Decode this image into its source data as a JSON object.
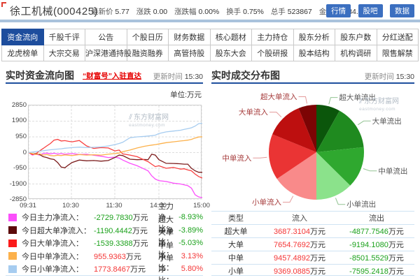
{
  "header": {
    "title": "徐工机械(000425)",
    "stats": [
      {
        "label": "最新价",
        "value": "5.77"
      },
      {
        "label": "涨跌",
        "value": "0.00"
      },
      {
        "label": "涨跌幅",
        "value": "0.00%"
      },
      {
        "label": "换手",
        "value": "0.75%"
      },
      {
        "label": "总手",
        "value": "523867"
      },
      {
        "label": "金额",
        "value": "30584.00万"
      }
    ],
    "buttons": [
      "行情",
      "股吧",
      "数据"
    ]
  },
  "nav": {
    "active": "资金流向",
    "row1": [
      "资金流向",
      "千股千评",
      "公告",
      "个股日历",
      "财务数据",
      "核心题材",
      "主力持仓",
      "股东分析",
      "股东户数",
      "分红送配"
    ],
    "row2": [
      "龙虎榜单",
      "大宗交易",
      "沪深港通持股",
      "融资融券",
      "高管持股",
      "股东大会",
      "个股研报",
      "股本结构",
      "机构调研",
      "限售解禁"
    ]
  },
  "left_panel": {
    "title": "实时资金流向图",
    "promo_link": "“财富号”入驻直达",
    "update_label": "更新时间",
    "update_time": "15:30",
    "unit_label": "单位:万元",
    "unit_suffix": "万元",
    "watermark": {
      "line1": "东方财富网",
      "line2": "eastmoney.com",
      "glyph": "⫽"
    },
    "legend_rows": [
      {
        "swatch": "#fb4ffb",
        "label": "今日主力净流入：",
        "value": "-2729.7830",
        "ratio_label": "主力净比：",
        "ratio": "-8.93%"
      },
      {
        "swatch": "#5c0a0a",
        "label": "今日超大单净流入：",
        "value": "-1190.4442",
        "ratio_label": "超大单净比：",
        "ratio": "-3.89%"
      },
      {
        "swatch": "#fb1b1b",
        "label": "今日大单净流入：",
        "value": "-1539.3388",
        "ratio_label": "大单净比：",
        "ratio": "-5.03%"
      },
      {
        "swatch": "#fcb14b",
        "label": "今日中单净流入：",
        "value": "955.9363",
        "ratio_label": "中单净比：",
        "ratio": "3.13%"
      },
      {
        "swatch": "#a6ccf0",
        "label": "今日小单净流入：",
        "value": "1773.8467",
        "ratio_label": "小单净比：",
        "ratio": "5.80%"
      }
    ]
  },
  "right_panel": {
    "title": "实时成交分布图",
    "update_label": "更新时间",
    "update_time": "15:30",
    "watermark": {
      "line1": "东方财富网",
      "line2": "eastmoney.com",
      "glyph": "⫽"
    },
    "table": {
      "headers": [
        "类型",
        "流入",
        "流出"
      ],
      "unit_suffix": "万元",
      "rows": [
        {
          "type": "超大单",
          "inflow": "3687.3104",
          "outflow": "-4877.7546"
        },
        {
          "type": "大单",
          "inflow": "7654.7692",
          "outflow": "-9194.1080"
        },
        {
          "type": "中单",
          "inflow": "9457.4892",
          "outflow": "-8501.5529"
        },
        {
          "type": "小单",
          "inflow": "9369.0885",
          "outflow": "-7595.2418"
        }
      ]
    }
  },
  "chart_data": [
    {
      "type": "line",
      "title": "实时资金流向图",
      "ylabel": "万元",
      "ylim": [
        -2850,
        2850
      ],
      "y_ticks": [
        2850,
        1900,
        950,
        0,
        -950,
        -1900,
        -2850
      ],
      "x_ticks": [
        "09:31",
        "10:30",
        "11:30",
        "14:00",
        "15:00"
      ],
      "x_ticks_minutes": [
        0,
        59,
        119,
        180,
        240
      ],
      "xlim_minutes": [
        0,
        240
      ],
      "grid": true,
      "x": [
        0,
        5,
        10,
        15,
        20,
        25,
        30,
        35,
        40,
        45,
        50,
        55,
        60,
        70,
        80,
        90,
        100,
        110,
        119,
        125,
        130,
        140,
        150,
        160,
        165,
        170,
        175,
        180,
        190,
        200,
        210,
        215,
        220,
        225,
        230,
        235,
        240
      ],
      "series": [
        {
          "name": "今日主力净流入",
          "color": "#fb4ffb",
          "final_value": -2729.783,
          "y": [
            0,
            -150,
            -100,
            -150,
            -60,
            -30,
            -80,
            -40,
            -90,
            -60,
            -100,
            -80,
            -60,
            -120,
            -100,
            -160,
            -220,
            -300,
            -280,
            -330,
            -450,
            -650,
            -800,
            -1000,
            -1100,
            -1400,
            -1600,
            -1700,
            -1750,
            -1850,
            -1900,
            -1950,
            -2000,
            -2150,
            -2550,
            -2680,
            -2729.78
          ]
        },
        {
          "name": "今日超大单净流入",
          "color": "#7c1d1d",
          "final_value": -1190.4442,
          "y": [
            0,
            -80,
            -60,
            -120,
            -250,
            -300,
            -380,
            -420,
            -600,
            -880,
            -920,
            -750,
            -600,
            -450,
            -500,
            -480,
            -520,
            -480,
            -300,
            -150,
            -180,
            -400,
            -430,
            -420,
            -430,
            -100,
            -150,
            -430,
            -650,
            -660,
            -680,
            -700,
            -700,
            -950,
            -1100,
            -1190,
            -1190.44
          ]
        },
        {
          "name": "今日大单净流入",
          "color": "#f84040",
          "final_value": -1539.3388,
          "y": [
            0,
            -120,
            -80,
            100,
            250,
            400,
            550,
            750,
            800,
            700,
            720,
            680,
            650,
            730,
            400,
            250,
            300,
            280,
            100,
            150,
            -80,
            -150,
            -250,
            -450,
            -550,
            -700,
            -850,
            -800,
            -950,
            -900,
            -1000,
            -980,
            -1050,
            -1100,
            -1300,
            -1450,
            -1539.34
          ]
        },
        {
          "name": "今日中单净流入",
          "color": "#fcb14b",
          "final_value": 955.9363,
          "y": [
            0,
            -60,
            -120,
            -80,
            -150,
            -120,
            -180,
            -200,
            -160,
            -180,
            -140,
            -160,
            -180,
            -120,
            -150,
            -130,
            -150,
            -100,
            -60,
            -30,
            50,
            150,
            280,
            380,
            420,
            450,
            480,
            520,
            600,
            650,
            700,
            720,
            750,
            800,
            880,
            940,
            955.94
          ]
        },
        {
          "name": "今日小单净流入",
          "color": "#a6ccf0",
          "final_value": 1773.8467,
          "y": [
            0,
            30,
            60,
            90,
            110,
            140,
            170,
            190,
            210,
            230,
            260,
            280,
            300,
            330,
            300,
            320,
            340,
            400,
            480,
            550,
            620,
            900,
            950,
            980,
            1000,
            1020,
            1050,
            1150,
            1250,
            1300,
            1350,
            1400,
            1450,
            1500,
            1600,
            1750,
            1773.85
          ]
        }
      ]
    },
    {
      "type": "pie",
      "title": "实时成交分布图",
      "start_angle_deg": 0,
      "direction": "clockwise",
      "slices": [
        {
          "label": "超大单流出",
          "value": 4877.7546,
          "color": "#0b560b",
          "side": "out"
        },
        {
          "label": "大单流出",
          "value": 9194.108,
          "color": "#1f8a1f",
          "side": "out"
        },
        {
          "label": "中单流出",
          "value": 8501.5529,
          "color": "#2fa82f",
          "side": "out"
        },
        {
          "label": "小单流出",
          "value": 7595.2418,
          "color": "#8be28b",
          "side": "out"
        },
        {
          "label": "小单流入",
          "value": 9369.0885,
          "color": "#f98a8a",
          "side": "in"
        },
        {
          "label": "中单流入",
          "value": 9457.4892,
          "color": "#ea3434",
          "side": "in"
        },
        {
          "label": "大单流入",
          "value": 7654.7692,
          "color": "#bd0f0f",
          "side": "in"
        },
        {
          "label": "超大单流入",
          "value": 3687.3104,
          "color": "#7c0404",
          "side": "in"
        }
      ]
    }
  ]
}
